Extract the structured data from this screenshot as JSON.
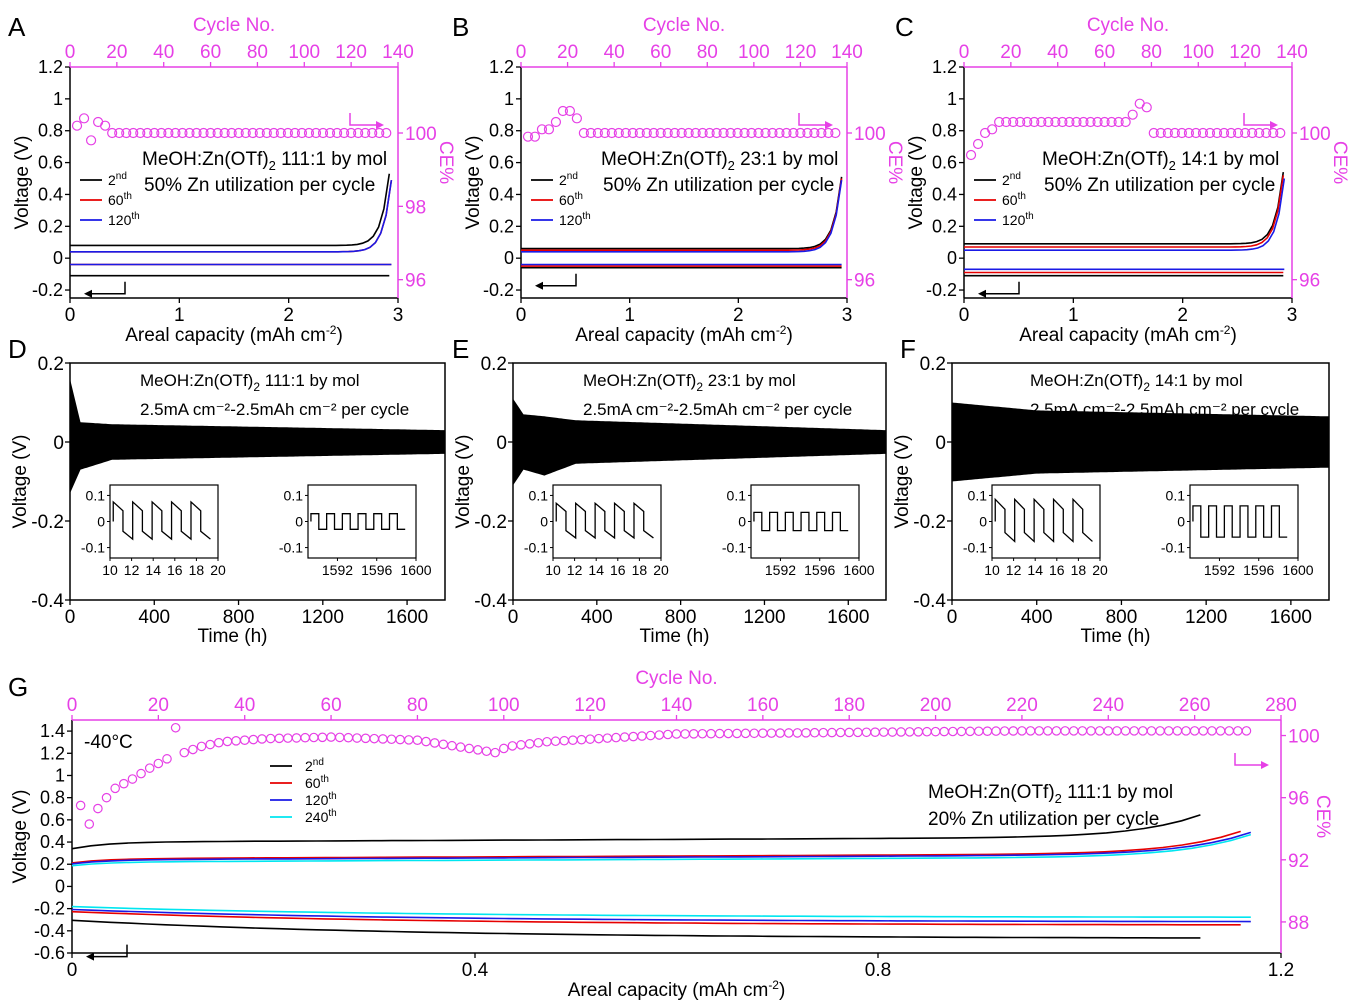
{
  "colors": {
    "ce": "#e640e6",
    "black": "#000000",
    "red": "#e60000",
    "blue": "#1a1ae6",
    "cyan": "#00e6f0"
  },
  "labels": {
    "cycle_no": "Cycle No.",
    "voltage": "Voltage (V)",
    "ce": "CE%",
    "areal": "Areal capacity (mAh cm",
    "time": "Time (h)"
  },
  "chart_data": [
    {
      "panel": "A",
      "type": "line",
      "title": "MeOH:Zn(OTf)₂ 111:1 by mol",
      "subtitle": "50% Zn utilization per cycle",
      "xlabel": "Areal capacity (mAh cm⁻²)",
      "ylabel": "Voltage (V)",
      "x2label": "Cycle No.",
      "y2label": "CE%",
      "xlim": [
        0,
        3
      ],
      "ylim": [
        -0.25,
        1.2
      ],
      "x2lim": [
        0,
        140
      ],
      "y2lim": [
        95.5,
        101.8
      ],
      "xticks": [
        0,
        1,
        2,
        3
      ],
      "yticks": [
        -0.2,
        0,
        0.2,
        0.4,
        0.6,
        0.8,
        1,
        1.2
      ],
      "x2ticks": [
        0,
        20,
        40,
        60,
        80,
        100,
        120,
        140
      ],
      "y2ticks": [
        96,
        98,
        100
      ],
      "legend": [
        "2nd",
        "60th",
        "120th"
      ],
      "curves": [
        {
          "name": "2nd",
          "color": "black",
          "charge": 0.08,
          "discharge": -0.11,
          "end": 2.92
        },
        {
          "name": "60th",
          "color": "red",
          "charge": 0.04,
          "discharge": -0.04,
          "end": 2.94
        },
        {
          "name": "120th",
          "color": "blue",
          "charge": 0.04,
          "discharge": -0.04,
          "end": 2.94
        }
      ],
      "ce_values": [
        [
          3,
          100.2
        ],
        [
          6,
          100.4
        ],
        [
          9,
          99.8
        ],
        [
          12,
          100.3
        ],
        [
          15,
          100.2
        ]
      ]
    },
    {
      "panel": "B",
      "type": "line",
      "title": "MeOH:Zn(OTf)₂ 23:1 by mol",
      "subtitle": "50% Zn utilization per cycle",
      "xlabel": "Areal capacity (mAh cm⁻²)",
      "ylabel": "Voltage (V)",
      "x2label": "Cycle No.",
      "y2label": "CE%",
      "xlim": [
        0,
        3
      ],
      "ylim": [
        -0.25,
        1.2
      ],
      "x2lim": [
        0,
        140
      ],
      "y2lim": [
        95.5,
        101.8
      ],
      "xticks": [
        0,
        1,
        2,
        3
      ],
      "yticks": [
        -0.2,
        0,
        0.2,
        0.4,
        0.6,
        0.8,
        1,
        1.2
      ],
      "x2ticks": [
        0,
        20,
        40,
        60,
        80,
        100,
        120,
        140
      ],
      "y2ticks": [
        96,
        100
      ],
      "legend": [
        "2nd",
        "60th",
        "120th"
      ],
      "curves": [
        {
          "name": "2nd",
          "color": "black",
          "charge": 0.06,
          "discharge": -0.06,
          "end": 2.95
        },
        {
          "name": "60th",
          "color": "red",
          "charge": 0.05,
          "discharge": -0.05,
          "end": 2.95
        },
        {
          "name": "120th",
          "color": "blue",
          "charge": 0.04,
          "discharge": -0.04,
          "end": 2.95
        }
      ],
      "ce_values": [
        [
          3,
          99.9
        ],
        [
          6,
          99.9
        ],
        [
          9,
          100.1
        ],
        [
          12,
          100.1
        ],
        [
          15,
          100.3
        ],
        [
          18,
          100.6
        ],
        [
          21,
          100.6
        ],
        [
          24,
          100.4
        ]
      ]
    },
    {
      "panel": "C",
      "type": "line",
      "title": "MeOH:Zn(OTf)₂ 14:1 by mol",
      "subtitle": "50% Zn utilization per cycle",
      "xlabel": "Areal capacity (mAh cm⁻²)",
      "ylabel": "Voltage (V)",
      "x2label": "Cycle No.",
      "y2label": "CE%",
      "xlim": [
        0,
        3
      ],
      "ylim": [
        -0.25,
        1.2
      ],
      "x2lim": [
        0,
        140
      ],
      "y2lim": [
        95.5,
        101.8
      ],
      "xticks": [
        0,
        1,
        2,
        3
      ],
      "yticks": [
        -0.2,
        0,
        0.2,
        0.4,
        0.6,
        0.8,
        1,
        1.2
      ],
      "x2ticks": [
        0,
        20,
        40,
        60,
        80,
        100,
        120,
        140
      ],
      "y2ticks": [
        96,
        100
      ],
      "legend": [
        "2nd",
        "60th",
        "120th"
      ],
      "curves": [
        {
          "name": "2nd",
          "color": "black",
          "charge": 0.09,
          "discharge": -0.11,
          "end": 2.92
        },
        {
          "name": "60th",
          "color": "red",
          "charge": 0.07,
          "discharge": -0.09,
          "end": 2.92
        },
        {
          "name": "120th",
          "color": "blue",
          "charge": 0.05,
          "discharge": -0.07,
          "end": 2.93
        }
      ],
      "ce_values": [
        [
          3,
          99.4
        ],
        [
          6,
          99.7
        ],
        [
          9,
          100.0
        ],
        [
          12,
          100.1
        ],
        [
          15,
          100.3
        ],
        [
          70,
          100.3
        ],
        [
          73,
          100.6
        ],
        [
          76,
          100.9
        ],
        [
          79,
          100.6
        ]
      ]
    },
    {
      "panel": "D",
      "type": "line",
      "title": "MeOH:Zn(OTf)₂ 111:1 by mol",
      "subtitle": "2.5mA cm⁻²-2.5mAh cm⁻² per cycle",
      "xlabel": "Time (h)",
      "ylabel": "Voltage (V)",
      "xlim": [
        0,
        1780
      ],
      "ylim": [
        -0.4,
        0.2
      ],
      "xticks": [
        0,
        400,
        800,
        1200,
        1600
      ],
      "yticks": [
        -0.4,
        -0.2,
        0,
        0.2
      ],
      "envelope": [
        [
          0,
          0.16,
          -0.13
        ],
        [
          50,
          0.05,
          -0.07
        ],
        [
          200,
          0.045,
          -0.045
        ],
        [
          1780,
          0.03,
          -0.03
        ]
      ],
      "inset1": {
        "xlim": [
          10,
          20
        ],
        "xticks": [
          10,
          12,
          14,
          16,
          18,
          20
        ],
        "yticks": [
          -0.1,
          0,
          0.1
        ],
        "amp": 0.075
      },
      "inset2": {
        "xlim": [
          1589,
          1600
        ],
        "xticks": [
          1592,
          1596,
          1600
        ],
        "yticks": [
          -0.1,
          0,
          0.1
        ],
        "amp": 0.03
      }
    },
    {
      "panel": "E",
      "type": "line",
      "title": "MeOH:Zn(OTf)₂ 23:1 by mol",
      "subtitle": "2.5mA cm⁻²-2.5mAh cm⁻² per cycle",
      "xlabel": "Time (h)",
      "ylabel": "Voltage (V)",
      "xlim": [
        0,
        1780
      ],
      "ylim": [
        -0.4,
        0.2
      ],
      "xticks": [
        0,
        400,
        800,
        1200,
        1600
      ],
      "yticks": [
        -0.4,
        -0.2,
        0,
        0.2
      ],
      "envelope": [
        [
          0,
          0.11,
          -0.11
        ],
        [
          50,
          0.07,
          -0.07
        ],
        [
          150,
          0.065,
          -0.085
        ],
        [
          300,
          0.055,
          -0.055
        ],
        [
          1780,
          0.03,
          -0.03
        ]
      ],
      "inset1": {
        "xlim": [
          10,
          20
        ],
        "xticks": [
          10,
          12,
          14,
          16,
          18,
          20
        ],
        "yticks": [
          -0.1,
          0,
          0.1
        ],
        "amp": 0.07
      },
      "inset2": {
        "xlim": [
          1589,
          1600
        ],
        "xticks": [
          1592,
          1596,
          1600
        ],
        "yticks": [
          -0.1,
          0,
          0.1
        ],
        "amp": 0.035
      }
    },
    {
      "panel": "F",
      "type": "line",
      "title": "MeOH:Zn(OTf)₂ 14:1 by mol",
      "subtitle": "2.5mA cm⁻²-2.5mAh cm⁻² per cycle",
      "xlabel": "Time (h)",
      "ylabel": "Voltage (V)",
      "xlim": [
        0,
        1780
      ],
      "ylim": [
        -0.4,
        0.2
      ],
      "xticks": [
        0,
        400,
        800,
        1200,
        1600
      ],
      "yticks": [
        -0.4,
        -0.2,
        0,
        0.2
      ],
      "envelope": [
        [
          0,
          0.1,
          -0.1
        ],
        [
          200,
          0.09,
          -0.09
        ],
        [
          400,
          0.08,
          -0.08
        ],
        [
          1780,
          0.065,
          -0.065
        ]
      ],
      "inset1": {
        "xlim": [
          10,
          20
        ],
        "xticks": [
          10,
          12,
          14,
          16,
          18,
          20
        ],
        "yticks": [
          -0.1,
          0,
          0.1
        ],
        "amp": 0.085
      },
      "inset2": {
        "xlim": [
          1589,
          1600
        ],
        "xticks": [
          1592,
          1596,
          1600
        ],
        "yticks": [
          -0.1,
          0,
          0.1
        ],
        "amp": 0.06
      }
    },
    {
      "panel": "G",
      "type": "line",
      "title": "MeOH:Zn(OTf)₂ 111:1 by mol",
      "subtitle": "20% Zn utilization per cycle",
      "annotation": "-40°C",
      "xlabel": "Areal capacity (mAh cm⁻²)",
      "ylabel": "Voltage (V)",
      "x2label": "Cycle No.",
      "y2label": "CE%",
      "xlim": [
        0,
        1.2
      ],
      "ylim": [
        -0.6,
        1.5
      ],
      "x2lim": [
        0,
        280
      ],
      "y2lim": [
        86,
        101
      ],
      "xticks": [
        0,
        0.4,
        0.8,
        1.2
      ],
      "yticks": [
        -0.6,
        -0.4,
        -0.2,
        0,
        0.2,
        0.4,
        0.6,
        0.8,
        1,
        1.2,
        1.4
      ],
      "x2ticks": [
        0,
        20,
        40,
        60,
        80,
        100,
        120,
        140,
        160,
        180,
        200,
        220,
        240,
        260,
        280
      ],
      "y2ticks": [
        88,
        92,
        96,
        100
      ],
      "legend": [
        "2nd",
        "60th",
        "120th",
        "240th"
      ],
      "curves": [
        {
          "name": "2nd",
          "color": "black",
          "charge": 0.4,
          "discharge": -0.47,
          "end": 1.12
        },
        {
          "name": "60th",
          "color": "red",
          "charge": 0.25,
          "discharge": -0.35,
          "end": 1.16
        },
        {
          "name": "120th",
          "color": "blue",
          "charge": 0.24,
          "discharge": -0.32,
          "end": 1.17
        },
        {
          "name": "240th",
          "color": "cyan",
          "charge": 0.22,
          "discharge": -0.28,
          "end": 1.17
        }
      ],
      "ce_values": [
        [
          2,
          95.5
        ],
        [
          4,
          94.3
        ],
        [
          6,
          95.3
        ],
        [
          8,
          96
        ],
        [
          10,
          96.6
        ],
        [
          14,
          97.2
        ],
        [
          18,
          97.9
        ],
        [
          22,
          98.5
        ],
        [
          24,
          100.5
        ],
        [
          26,
          98.9
        ],
        [
          30,
          99.3
        ],
        [
          35,
          99.6
        ],
        [
          45,
          99.8
        ],
        [
          60,
          99.9
        ],
        [
          80,
          99.7
        ],
        [
          98,
          98.9
        ],
        [
          101,
          99.3
        ],
        [
          110,
          99.6
        ],
        [
          140,
          100.1
        ],
        [
          180,
          100.2
        ],
        [
          220,
          100.3
        ],
        [
          270,
          100.3
        ]
      ]
    }
  ]
}
